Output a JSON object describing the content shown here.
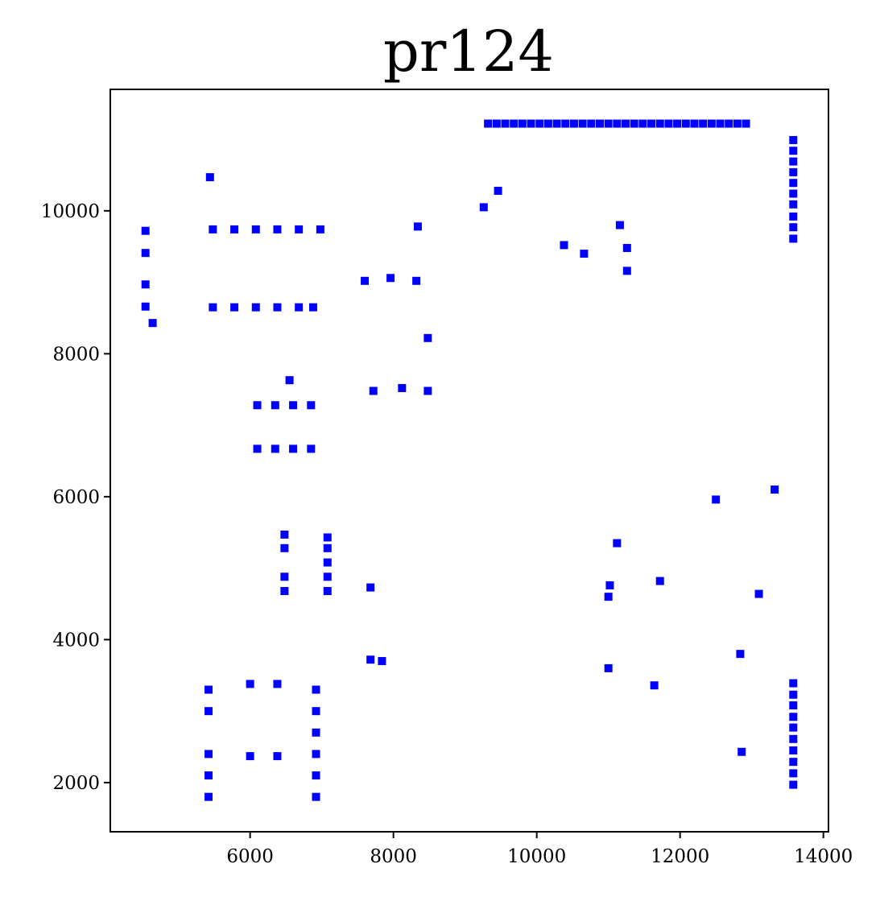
{
  "chart_data": {
    "type": "scatter",
    "title": "pr124",
    "xlabel": "",
    "ylabel": "",
    "xlim": [
      4049,
      14071
    ],
    "ylim": [
      1312,
      11699
    ],
    "grid": false,
    "xticks": [
      6000,
      8000,
      10000,
      12000,
      14000
    ],
    "yticks": [
      2000,
      4000,
      6000,
      8000,
      10000
    ],
    "xtick_labels": [
      "6000",
      "8000",
      "10000",
      "12000",
      "14000"
    ],
    "ytick_labels": [
      "2000",
      "4000",
      "6000",
      "8000",
      "10000"
    ],
    "marker_color": "#0000ff",
    "marker": "square",
    "series": [
      {
        "points": [
          [
            4540,
            9720
          ],
          [
            4540,
            9410
          ],
          [
            4540,
            8970
          ],
          [
            4540,
            8660
          ],
          [
            4640,
            8430
          ],
          [
            5440,
            10470
          ],
          [
            5480,
            9740
          ],
          [
            5780,
            9740
          ],
          [
            6080,
            9740
          ],
          [
            6380,
            9740
          ],
          [
            6680,
            9740
          ],
          [
            6980,
            9740
          ],
          [
            5480,
            8650
          ],
          [
            5780,
            8650
          ],
          [
            6080,
            8650
          ],
          [
            6380,
            8650
          ],
          [
            6680,
            8650
          ],
          [
            6880,
            8650
          ],
          [
            6100,
            7280
          ],
          [
            6350,
            7280
          ],
          [
            6600,
            7280
          ],
          [
            6850,
            7280
          ],
          [
            6550,
            7630
          ],
          [
            6100,
            6670
          ],
          [
            6350,
            6670
          ],
          [
            6600,
            6670
          ],
          [
            6850,
            6670
          ],
          [
            6480,
            5470
          ],
          [
            6480,
            5280
          ],
          [
            6480,
            4880
          ],
          [
            6480,
            4680
          ],
          [
            7080,
            5430
          ],
          [
            7080,
            5280
          ],
          [
            7080,
            5080
          ],
          [
            7080,
            4880
          ],
          [
            7080,
            4680
          ],
          [
            5420,
            3300
          ],
          [
            5420,
            3000
          ],
          [
            5420,
            2400
          ],
          [
            5420,
            2100
          ],
          [
            5420,
            1800
          ],
          [
            6000,
            3380
          ],
          [
            6380,
            3380
          ],
          [
            6000,
            2370
          ],
          [
            6380,
            2370
          ],
          [
            6920,
            3300
          ],
          [
            6920,
            3000
          ],
          [
            6920,
            2700
          ],
          [
            6920,
            2400
          ],
          [
            6920,
            2100
          ],
          [
            6920,
            1800
          ],
          [
            7680,
            4730
          ],
          [
            7680,
            3720
          ],
          [
            7840,
            3700
          ],
          [
            7600,
            9020
          ],
          [
            7960,
            9060
          ],
          [
            8320,
            9020
          ],
          [
            8340,
            9780
          ],
          [
            8480,
            8220
          ],
          [
            7720,
            7480
          ],
          [
            8120,
            7520
          ],
          [
            8480,
            7480
          ],
          [
            9260,
            10050
          ],
          [
            9460,
            10280
          ],
          [
            9320,
            11220
          ],
          [
            9440,
            11220
          ],
          [
            9560,
            11220
          ],
          [
            9680,
            11220
          ],
          [
            9800,
            11220
          ],
          [
            9920,
            11220
          ],
          [
            10040,
            11220
          ],
          [
            10160,
            11220
          ],
          [
            10280,
            11220
          ],
          [
            10400,
            11220
          ],
          [
            10520,
            11220
          ],
          [
            10640,
            11220
          ],
          [
            10760,
            11220
          ],
          [
            10880,
            11220
          ],
          [
            11000,
            11220
          ],
          [
            11120,
            11220
          ],
          [
            11240,
            11220
          ],
          [
            11360,
            11220
          ],
          [
            11480,
            11220
          ],
          [
            11600,
            11220
          ],
          [
            11720,
            11220
          ],
          [
            11840,
            11220
          ],
          [
            11960,
            11220
          ],
          [
            12080,
            11220
          ],
          [
            12200,
            11220
          ],
          [
            12320,
            11220
          ],
          [
            12440,
            11220
          ],
          [
            12560,
            11220
          ],
          [
            12680,
            11220
          ],
          [
            12800,
            11220
          ],
          [
            12920,
            11220
          ],
          [
            13580,
            10990
          ],
          [
            13580,
            10840
          ],
          [
            13580,
            10690
          ],
          [
            13580,
            10540
          ],
          [
            13580,
            10390
          ],
          [
            13580,
            10240
          ],
          [
            13580,
            10090
          ],
          [
            13580,
            9920
          ],
          [
            13580,
            9770
          ],
          [
            13580,
            9610
          ],
          [
            10380,
            9520
          ],
          [
            10660,
            9400
          ],
          [
            11160,
            9800
          ],
          [
            11260,
            9480
          ],
          [
            11260,
            9160
          ],
          [
            12500,
            5960
          ],
          [
            13320,
            6100
          ],
          [
            11120,
            5350
          ],
          [
            11020,
            4760
          ],
          [
            11000,
            4600
          ],
          [
            11720,
            4820
          ],
          [
            13100,
            4640
          ],
          [
            11000,
            3600
          ],
          [
            11640,
            3360
          ],
          [
            12840,
            3800
          ],
          [
            12860,
            2430
          ],
          [
            13580,
            3390
          ],
          [
            13580,
            3230
          ],
          [
            13580,
            3080
          ],
          [
            13580,
            2920
          ],
          [
            13580,
            2770
          ],
          [
            13580,
            2610
          ],
          [
            13580,
            2450
          ],
          [
            13580,
            2290
          ],
          [
            13580,
            2130
          ],
          [
            13580,
            1970
          ]
        ]
      }
    ]
  }
}
